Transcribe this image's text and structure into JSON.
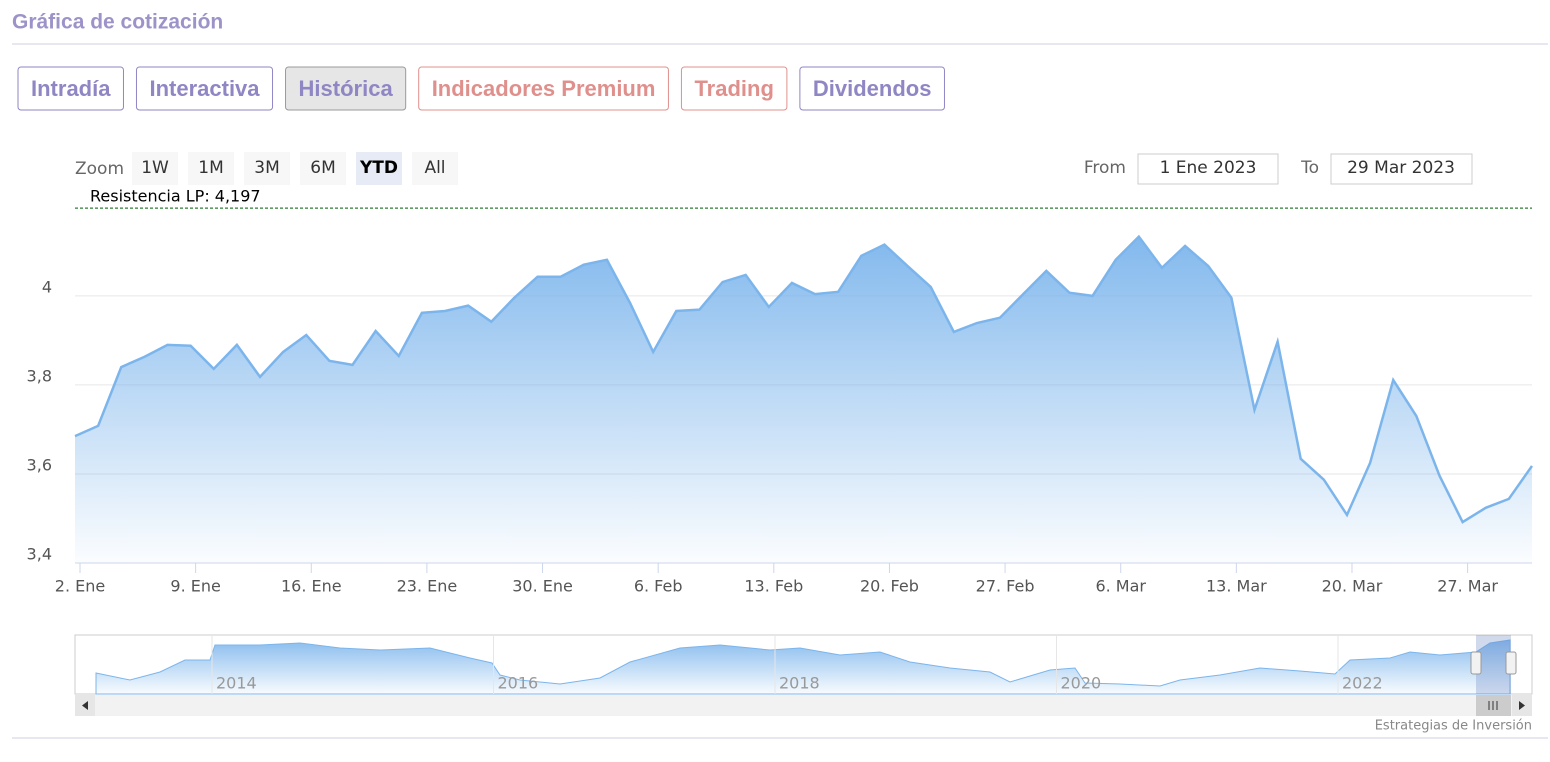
{
  "header": {
    "title": "Gráfica de cotización"
  },
  "tabs": {
    "active": 2,
    "items": [
      {
        "label": "Intradía",
        "color": "#8f86c4"
      },
      {
        "label": "Interactiva",
        "color": "#8f86c4"
      },
      {
        "label": "Histórica",
        "color": "#8f86c4"
      },
      {
        "label": "Indicadores Premium",
        "color": "#e0908c"
      },
      {
        "label": "Trading",
        "color": "#e0908c"
      },
      {
        "label": "Dividendos",
        "color": "#8f86c4"
      }
    ]
  },
  "range_selector": {
    "zoom_label": "Zoom",
    "buttons": [
      "1W",
      "1M",
      "3M",
      "6M",
      "YTD",
      "All"
    ],
    "selected": 4,
    "from_label": "From",
    "from": "1 Ene 2023",
    "to_label": "To",
    "to": "29 Mar 2023"
  },
  "chart_data": {
    "type": "area",
    "color": "#7cb5ec",
    "grid": true,
    "categories": [
      "2. Ene",
      null,
      null,
      null,
      null,
      "9. Ene",
      null,
      null,
      null,
      null,
      "16. Ene",
      null,
      null,
      null,
      null,
      "23. Ene",
      null,
      null,
      null,
      null,
      "30. Ene",
      null,
      null,
      null,
      null,
      "6. Feb",
      null,
      null,
      null,
      null,
      "13. Feb",
      null,
      null,
      null,
      null,
      "20. Feb",
      null,
      null,
      null,
      null,
      "27. Feb",
      null,
      null,
      null,
      null,
      "6. Mar",
      null,
      null,
      null,
      null,
      "13. Mar",
      null,
      null,
      null,
      null,
      "20. Mar",
      null,
      null,
      null,
      null,
      "27. Mar",
      null,
      null,
      null
    ],
    "values": [
      3.685,
      3.708,
      3.84,
      3.863,
      3.89,
      3.888,
      3.836,
      3.89,
      3.818,
      3.874,
      3.912,
      3.854,
      3.845,
      3.921,
      3.865,
      3.962,
      3.966,
      3.978,
      3.942,
      3.996,
      4.043,
      4.043,
      4.07,
      4.081,
      3.984,
      3.874,
      3.966,
      3.969,
      4.031,
      4.047,
      3.975,
      4.029,
      4.004,
      4.009,
      4.09,
      4.115,
      4.067,
      4.02,
      3.919,
      3.939,
      3.951,
      4.004,
      4.056,
      4.007,
      4.0,
      4.081,
      4.133,
      4.063,
      4.112,
      4.067,
      3.996,
      3.744,
      3.897,
      3.634,
      3.587,
      3.508,
      3.625,
      3.811,
      3.73,
      3.596,
      3.492,
      3.524,
      3.544,
      3.618
    ],
    "ylim": [
      3.4,
      4.24
    ],
    "yticks": [
      {
        "value": 3.4,
        "label": "3,4"
      },
      {
        "value": 3.6,
        "label": "3,6"
      },
      {
        "value": 3.8,
        "label": "3,8"
      },
      4
    ],
    "annotation": {
      "label": "Resistencia LP: 4,197",
      "value": 4.197,
      "color": "#2e7d32"
    }
  },
  "navigator": {
    "labels": [
      "2014",
      "2016",
      "2018",
      "2020",
      "2022"
    ]
  },
  "credits": "Estrategias de Inversión"
}
